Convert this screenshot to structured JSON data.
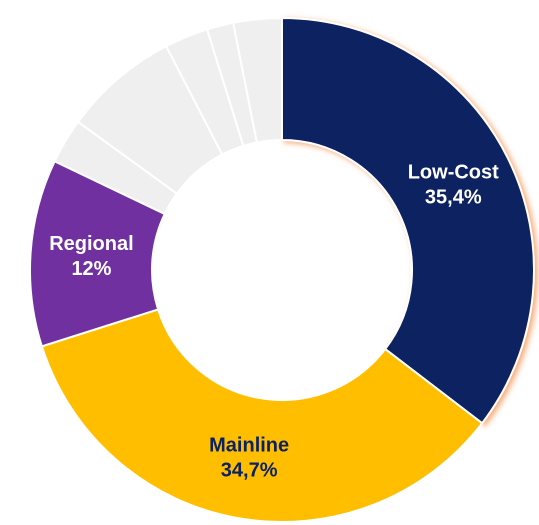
{
  "chart_data": {
    "type": "pie",
    "categories": [
      "Low-Cost",
      "Mainline",
      "Regional",
      null,
      null,
      null,
      null,
      null
    ],
    "values": [
      35.4,
      34.7,
      12,
      2.9,
      7.4,
      2.8,
      1.7,
      3.1
    ],
    "value_labels": [
      "35,4%",
      "34,7%",
      "12%",
      null,
      null,
      null,
      null,
      null
    ],
    "colors": [
      "#0b2160",
      "#ffbf00",
      "#7030a0",
      "#efefef",
      "#efefef",
      "#efefef",
      "#efefef",
      "#efefef"
    ],
    "label_colors": [
      "#ffffff",
      "#0b2160",
      "#ffffff",
      null,
      null,
      null,
      null,
      null
    ]
  }
}
